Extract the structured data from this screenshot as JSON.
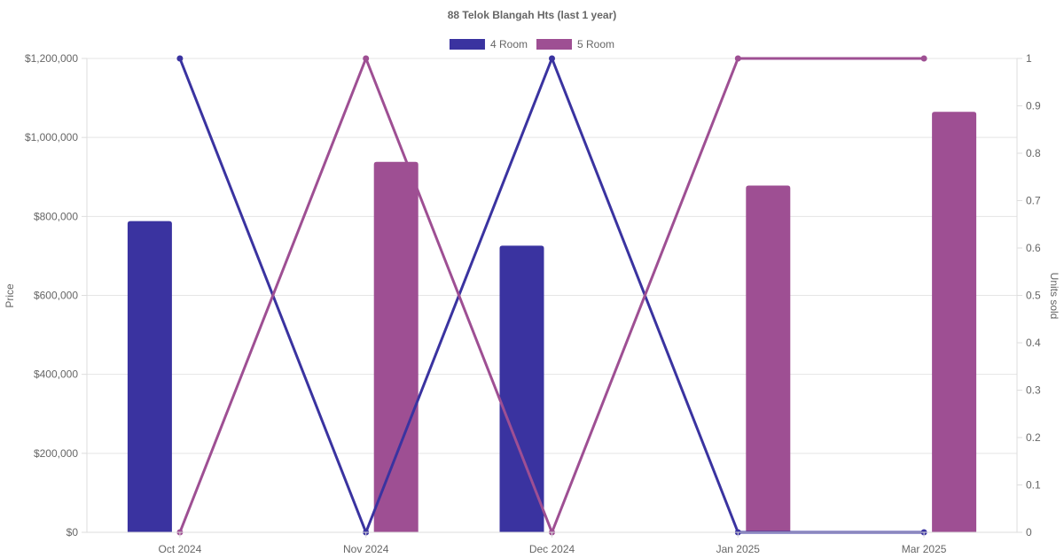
{
  "chart_data": {
    "type": "bar",
    "title": "88 Telok Blangah Hts (last 1 year)",
    "categories": [
      "Oct 2024",
      "Nov 2024",
      "Dec 2024",
      "Jan 2025",
      "Mar 2025"
    ],
    "legend": {
      "position": "top"
    },
    "y_left": {
      "label": "Price",
      "ticks": [
        "$0",
        "$200,000",
        "$400,000",
        "$600,000",
        "$800,000",
        "$1,000,000",
        "$1,200,000"
      ],
      "ylim": [
        0,
        1200000
      ]
    },
    "y_right": {
      "label": "Units sold",
      "ticks": [
        "0",
        "0.1",
        "0.2",
        "0.3",
        "0.4",
        "0.5",
        "0.6",
        "0.7",
        "0.8",
        "0.9",
        "1"
      ],
      "ylim": [
        0,
        1
      ]
    },
    "grid": true,
    "series": [
      {
        "name": "4 Room",
        "color": "#3a33a0",
        "price": [
          788000,
          null,
          726000,
          null,
          null
        ],
        "units": [
          1,
          0,
          1,
          0,
          0
        ]
      },
      {
        "name": "5 Room",
        "color": "#9e4f93",
        "price": [
          null,
          938000,
          null,
          878000,
          1065000
        ],
        "units": [
          0,
          1,
          0,
          1,
          1
        ]
      }
    ]
  }
}
